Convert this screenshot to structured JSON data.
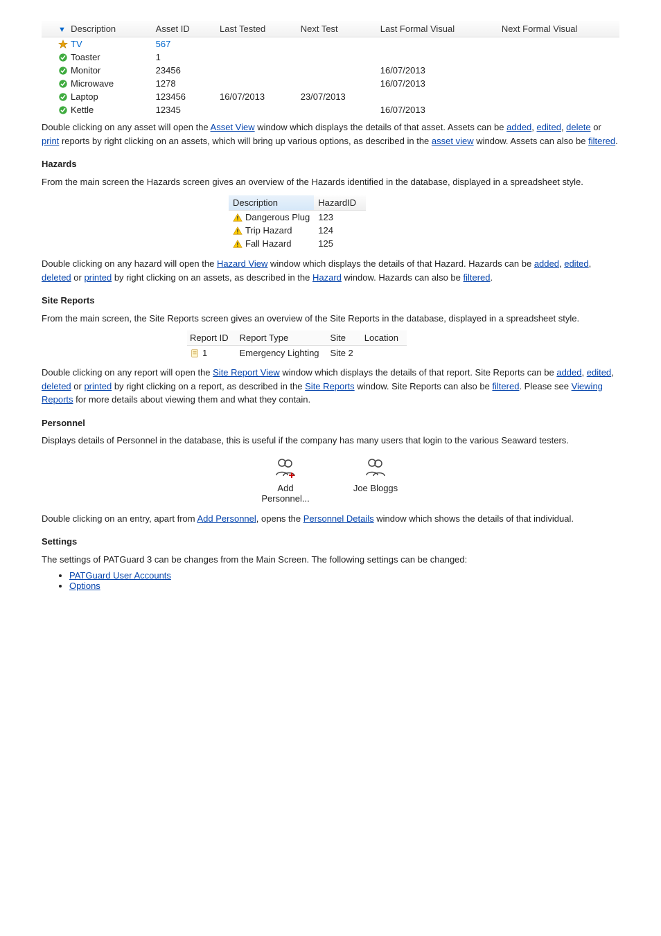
{
  "asset_table": {
    "headers": {
      "description": "Description",
      "asset_id": "Asset ID",
      "last_tested": "Last Tested",
      "next_test": "Next Test",
      "last_formal": "Last Formal Visual",
      "next_formal": "Next Formal Visual"
    },
    "rows": [
      {
        "icon": "star",
        "desc": "TV",
        "asset_id": "567",
        "last_tested": "",
        "next_test": "",
        "last_formal": "",
        "next_formal": "",
        "hl": true
      },
      {
        "icon": "check",
        "desc": "Toaster",
        "asset_id": "1",
        "last_tested": "",
        "next_test": "",
        "last_formal": "",
        "next_formal": ""
      },
      {
        "icon": "check",
        "desc": "Monitor",
        "asset_id": "23456",
        "last_tested": "",
        "next_test": "",
        "last_formal": "16/07/2013",
        "next_formal": ""
      },
      {
        "icon": "check",
        "desc": "Microwave",
        "asset_id": "1278",
        "last_tested": "",
        "next_test": "",
        "last_formal": "16/07/2013",
        "next_formal": ""
      },
      {
        "icon": "check",
        "desc": "Laptop",
        "asset_id": "123456",
        "last_tested": "16/07/2013",
        "next_test": "23/07/2013",
        "last_formal": "",
        "next_formal": ""
      },
      {
        "icon": "check",
        "desc": "Kettle",
        "asset_id": "12345",
        "last_tested": "",
        "next_test": "",
        "last_formal": "16/07/2013",
        "next_formal": ""
      }
    ]
  },
  "para1": {
    "pre1": "Double clicking on any asset will open the ",
    "link1": "Asset View",
    "post1": " window which displays the details of that asset. ",
    "pre2": "Assets can be ",
    "link2a": "added",
    "mid2a": ", ",
    "link2b": "edited",
    "mid2b": ", ",
    "link2c": "delete",
    "mid2c": " or ",
    "link2d": "print",
    "post2": " reports by right clicking on an assets, which will bring up various options, as described in the ",
    "link3": "asset view",
    "mid3": " window. Assets can also be ",
    "link4": "filtered",
    "post4": "."
  },
  "hazards_title": "Hazards",
  "hazards_desc": "From the main screen the Hazards screen gives an overview of the Hazards identified in the database, displayed in a spreadsheet style.",
  "hazards_table": {
    "headers": {
      "description": "Description",
      "hazard_id": "HazardID"
    },
    "rows": [
      {
        "desc": "Dangerous Plug",
        "id": "123"
      },
      {
        "desc": "Trip Hazard",
        "id": "124"
      },
      {
        "desc": "Fall Hazard",
        "id": "125"
      }
    ]
  },
  "para2": {
    "pre": "Double clicking on any hazard will open the ",
    "link1": "Hazard View",
    "mid1": " window which displays the details of that Hazard. Hazards can be ",
    "link2a": "added",
    "sep2a": ", ",
    "link2b": "edited",
    "sep2b": ", ",
    "link2c": "deleted",
    "sep2c": " or ",
    "link2d": "printed",
    "mid2": " by right clicking on an assets, as described in the ",
    "link3": "Hazard",
    "mid3": " window. Hazards can also be ",
    "link4": "filtered",
    "post": "."
  },
  "reports_title": "Site Reports",
  "reports_desc": "From the main screen, the Site Reports screen gives an overview of the Site Reports in the database, displayed in a spreadsheet style.",
  "reports_table": {
    "headers": {
      "report_id": "Report ID",
      "report_type": "Report Type",
      "site": "Site",
      "location": "Location"
    },
    "rows": [
      {
        "id": "1",
        "type": "Emergency Lighting",
        "site": "Site 2",
        "location": ""
      }
    ]
  },
  "para3": {
    "pre": "Double clicking on any report will open the ",
    "link1": "Site Report View",
    "mid1": " window which displays the details of that report. Site Reports can be ",
    "link2a": "added",
    "sep2a": ", ",
    "link2b": "edited",
    "sep2b": ", ",
    "link2c": "deleted",
    "sep2c": " or ",
    "link2d": "printed",
    "mid2": " by right clicking on a report, as described in the ",
    "link3": "Site Reports",
    "mid3": " window. Site Reports can also be ",
    "link4": "filtered",
    "mid4": ". Please see ",
    "link5": "Viewing Reports",
    "post": " for more details about viewing them and what they contain."
  },
  "personnel_title": "Personnel",
  "personnel_desc": "Displays details of Personnel in the database, this is useful if the company has many users that login to the various Seaward testers.",
  "personnel": {
    "add": "Add Personnel...",
    "person1": "Joe Bloggs"
  },
  "para4": {
    "pre": "Double clicking on an entry, apart from ",
    "link1": "Add Personnel",
    "mid": ", opens the ",
    "link2": "Personnel Details",
    "post": " window which shows the details of that individual."
  },
  "settings": {
    "title": "Settings",
    "content1": "The settings of PATGuard 3 can be changes from the Main Screen. The following settings can be changed:",
    "li1": "PATGuard User Accounts",
    "li2": "Options"
  },
  "colors": {
    "link": "#0645ad",
    "check_green": "#3fab3f",
    "star_gold": "#e9a20d",
    "warn_fill": "#ffcc00",
    "warn_border": "#c98f00"
  }
}
